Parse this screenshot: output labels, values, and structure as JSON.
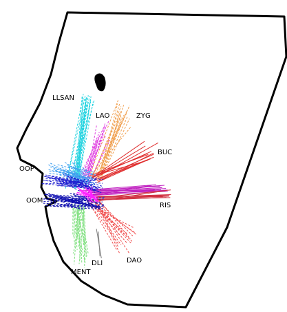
{
  "labels": [
    "LLSAN",
    "LAO",
    "ZYG",
    "BUC",
    "OOP",
    "OOM",
    "RIS",
    "DLI",
    "DAO",
    "MENT"
  ]
}
